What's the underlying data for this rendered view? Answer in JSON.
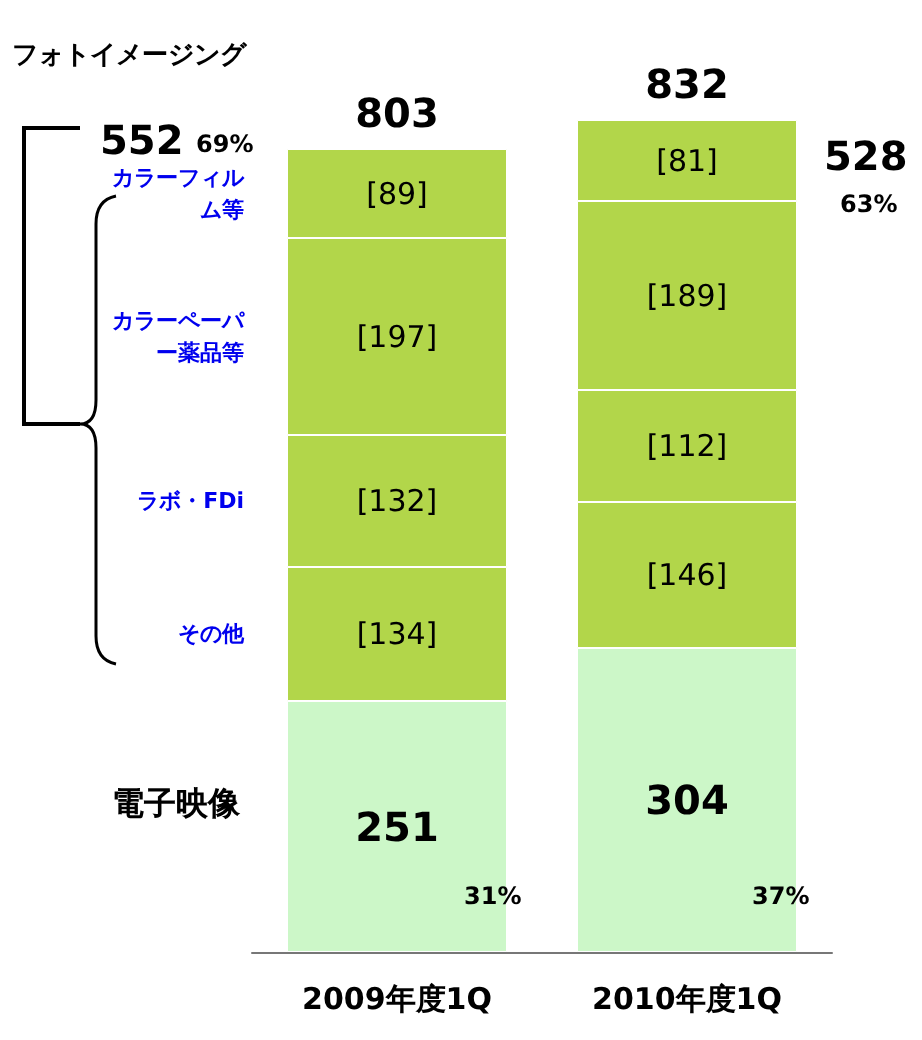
{
  "chart_data": {
    "type": "bar",
    "stacked": true,
    "categories": [
      "2009年度1Q",
      "2010年度1Q"
    ],
    "series": [
      {
        "name": "電子映像",
        "color": "#ccf7c8",
        "values": [
          251,
          304
        ],
        "value_labels": [
          "251",
          "304"
        ]
      },
      {
        "name": "その他",
        "color": "#b2d64a",
        "values": [
          134,
          146
        ],
        "value_labels": [
          "[134]",
          "[146]"
        ]
      },
      {
        "name": "ラボ・FDi",
        "color": "#b2d64a",
        "values": [
          132,
          112
        ],
        "value_labels": [
          "[132]",
          "[112]"
        ]
      },
      {
        "name": "カラーペーパー薬品等",
        "color": "#b2d64a",
        "values": [
          197,
          189
        ],
        "value_labels": [
          "[197]",
          "[189]"
        ]
      },
      {
        "name": "カラーフィルム等",
        "color": "#b2d64a",
        "values": [
          89,
          81
        ],
        "value_labels": [
          "[89]",
          "[81]"
        ]
      }
    ],
    "totals": [
      "803",
      "832"
    ],
    "annotations": [
      "フォトイメージング",
      "552",
      "69%",
      "528",
      "63%",
      "31%",
      "37%"
    ],
    "legend": false
  }
}
